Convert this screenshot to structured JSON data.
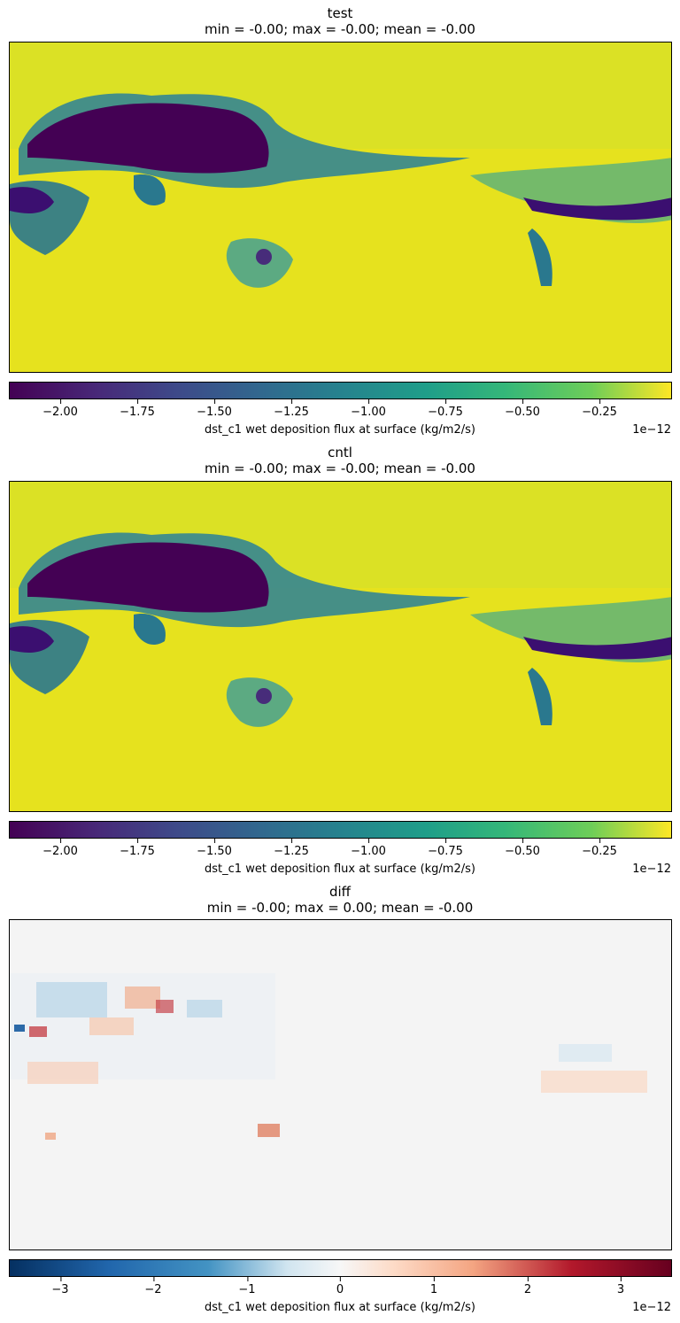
{
  "panels": [
    {
      "title": "test",
      "stats": "min = -0.00; max = -0.00; mean = -0.00"
    },
    {
      "title": "cntl",
      "stats": "min = -0.00; max = -0.00; mean = -0.00"
    },
    {
      "title": "diff",
      "stats": "min = -0.00; max = 0.00; mean = -0.00"
    }
  ],
  "colorbars": [
    {
      "cmap": "viridis",
      "range": [
        -2.15,
        0.0
      ],
      "ticks": [
        "−2.00",
        "−1.75",
        "−1.50",
        "−1.25",
        "−1.00",
        "−0.75",
        "−0.50",
        "−0.25"
      ],
      "tick_values": [
        -2.0,
        -1.75,
        -1.5,
        -1.25,
        -1.0,
        -0.75,
        -0.5,
        -0.25
      ],
      "label": "dst_c1 wet deposition flux at surface (kg/m2/s)",
      "scale": "1e−12"
    },
    {
      "cmap": "viridis",
      "range": [
        -2.15,
        0.0
      ],
      "ticks": [
        "−2.00",
        "−1.75",
        "−1.50",
        "−1.25",
        "−1.00",
        "−0.75",
        "−0.50",
        "−0.25"
      ],
      "tick_values": [
        -2.0,
        -1.75,
        -1.5,
        -1.25,
        -1.0,
        -0.75,
        -0.5,
        -0.25
      ],
      "label": "dst_c1 wet deposition flux at surface (kg/m2/s)",
      "scale": "1e−12"
    },
    {
      "cmap": "RdBu_r",
      "range": [
        -3.55,
        3.55
      ],
      "ticks": [
        "−3",
        "−2",
        "−1",
        "0",
        "1",
        "2",
        "3"
      ],
      "tick_values": [
        -3,
        -2,
        -1,
        0,
        1,
        2,
        3
      ],
      "label": "dst_c1 wet deposition flux at surface (kg/m2/s)",
      "scale": "1e−12"
    }
  ],
  "chart_data": {
    "type": "heatmap",
    "panels": [
      "test",
      "cntl",
      "diff"
    ],
    "projection": "global lat-lon",
    "units": "kg/m2/s",
    "scale_factor": "1e-12"
  }
}
